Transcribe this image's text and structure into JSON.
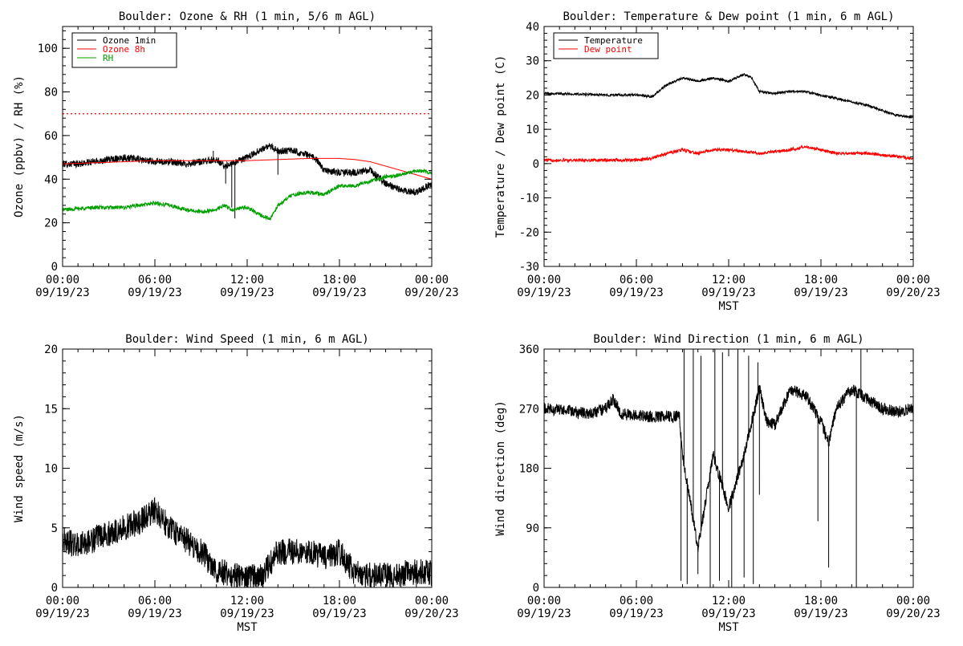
{
  "colors": {
    "background": "#ffffff",
    "axis": "#000000",
    "ozone_1min": "#000000",
    "ozone_8h": "#ff0000",
    "rh": "#00a000",
    "temperature": "#000000",
    "dew_point": "#ff0000",
    "wind": "#000000"
  },
  "chart_data": [
    {
      "id": "ozone-rh",
      "type": "line",
      "title": "Boulder: Ozone & RH (1 min, 5/6 m AGL)",
      "ylabel": "Ozone (ppbv) / RH (%)",
      "xlabel": "",
      "ylim": [
        0,
        110
      ],
      "yticks": [
        0,
        20,
        40,
        60,
        80,
        100
      ],
      "xlim_hours": [
        0,
        24
      ],
      "xticks": [
        {
          "h": 0,
          "time": "00:00",
          "date": "09/19/23"
        },
        {
          "h": 6,
          "time": "06:00",
          "date": "09/19/23"
        },
        {
          "h": 12,
          "time": "12:00",
          "date": "09/19/23"
        },
        {
          "h": 18,
          "time": "18:00",
          "date": "09/19/23"
        },
        {
          "h": 24,
          "time": "00:00",
          "date": "09/20/23"
        }
      ],
      "legend": {
        "placement": "top-left"
      },
      "reference_line": {
        "y": 70,
        "color": "#ff0000",
        "style": "dotted"
      },
      "series": [
        {
          "name": "Ozone 1min",
          "color": "#000000",
          "noise": 1.6,
          "spikes": [
            [
              9.8,
              53
            ],
            [
              10.6,
              38
            ],
            [
              11.0,
              27
            ],
            [
              11.2,
              22
            ],
            [
              14.0,
              42
            ]
          ],
          "x": [
            0,
            1,
            2,
            3,
            4,
            5,
            6,
            7,
            8,
            9,
            10,
            10.5,
            11,
            12,
            13,
            13.5,
            14,
            15,
            16,
            16.5,
            17,
            18,
            19,
            20,
            21,
            22,
            23,
            24
          ],
          "y": [
            47,
            47,
            48,
            49,
            50,
            49,
            48,
            48,
            47,
            48,
            49,
            46,
            47,
            50,
            54,
            55,
            53,
            53,
            51,
            49,
            44,
            43,
            43,
            44,
            38,
            35,
            34,
            38
          ]
        },
        {
          "name": "Ozone 8h",
          "color": "#ff0000",
          "noise": 0,
          "x": [
            0,
            2,
            4,
            6,
            8,
            10,
            12,
            14,
            16,
            18,
            19,
            20,
            21,
            22,
            23,
            24
          ],
          "y": [
            47,
            47.5,
            48,
            48.5,
            48.5,
            48.5,
            48.5,
            49,
            49.5,
            49.5,
            49,
            48,
            46,
            44,
            42,
            40
          ]
        },
        {
          "name": "RH",
          "color": "#00a000",
          "noise": 0.9,
          "x": [
            0,
            2,
            4,
            5,
            6,
            7,
            8,
            9,
            10,
            10.5,
            11,
            12,
            13,
            13.5,
            14,
            15,
            16,
            17,
            18,
            19,
            20,
            21,
            22,
            23,
            24
          ],
          "y": [
            26,
            27,
            27,
            28,
            29,
            28,
            26,
            25,
            26,
            28,
            26,
            27,
            23,
            22,
            28,
            33,
            34,
            33,
            37,
            37,
            39,
            41,
            42,
            44,
            43
          ]
        }
      ]
    },
    {
      "id": "temp-dew",
      "type": "line",
      "title": "Boulder: Temperature & Dew point (1 min, 6 m AGL)",
      "ylabel": "Temperature / Dew point (C)",
      "xlabel": "MST",
      "ylim": [
        -30,
        40
      ],
      "yticks": [
        -30,
        -20,
        -10,
        0,
        10,
        20,
        30,
        40
      ],
      "xlim_hours": [
        0,
        24
      ],
      "xticks": [
        {
          "h": 0,
          "time": "00:00",
          "date": "09/19/23"
        },
        {
          "h": 6,
          "time": "06:00",
          "date": "09/19/23"
        },
        {
          "h": 12,
          "time": "12:00",
          "date": "09/19/23"
        },
        {
          "h": 18,
          "time": "18:00",
          "date": "09/19/23"
        },
        {
          "h": 24,
          "time": "00:00",
          "date": "09/20/23"
        }
      ],
      "legend": {
        "placement": "top-left"
      },
      "series": [
        {
          "name": "Temperature",
          "color": "#000000",
          "noise": 0.35,
          "x": [
            0,
            2,
            4,
            6,
            7,
            8,
            9,
            10,
            11,
            12,
            13,
            13.5,
            14,
            15,
            16,
            17,
            18,
            19,
            20,
            21,
            22,
            23,
            24
          ],
          "y": [
            20.5,
            20.3,
            20,
            20,
            19.5,
            23,
            25,
            24,
            25,
            24,
            26,
            25,
            21,
            20.5,
            21,
            21,
            20,
            19,
            18,
            17,
            15.5,
            14,
            13.5
          ]
        },
        {
          "name": "Dew point",
          "color": "#ff0000",
          "noise": 0.45,
          "x": [
            0,
            2,
            4,
            6,
            7,
            8,
            9,
            10,
            11,
            12,
            13,
            14,
            15,
            16,
            17,
            18,
            19,
            20,
            21,
            22,
            23,
            24
          ],
          "y": [
            1,
            1,
            1,
            1,
            1.5,
            3,
            4,
            3,
            4,
            4,
            3.5,
            3,
            3.5,
            4,
            5,
            4,
            3,
            3,
            3,
            2.5,
            2,
            1.5
          ]
        }
      ]
    },
    {
      "id": "wind-speed",
      "type": "line",
      "title": "Boulder: Wind Speed (1 min, 6 m AGL)",
      "ylabel": "Wind speed (m/s)",
      "xlabel": "MST",
      "ylim": [
        0,
        20
      ],
      "yticks": [
        0,
        5,
        10,
        15,
        20
      ],
      "xlim_hours": [
        0,
        24
      ],
      "xticks": [
        {
          "h": 0,
          "time": "00:00",
          "date": "09/19/23"
        },
        {
          "h": 6,
          "time": "06:00",
          "date": "09/19/23"
        },
        {
          "h": 12,
          "time": "12:00",
          "date": "09/19/23"
        },
        {
          "h": 18,
          "time": "18:00",
          "date": "09/19/23"
        },
        {
          "h": 24,
          "time": "00:00",
          "date": "09/20/23"
        }
      ],
      "series": [
        {
          "name": "",
          "color": "#000000",
          "noise": 1.1,
          "floor": 0,
          "x": [
            0,
            1,
            2,
            3,
            4,
            5,
            6,
            7,
            8,
            9,
            10,
            11,
            12,
            13,
            14,
            15,
            16,
            17,
            18,
            19,
            20,
            21,
            22,
            23,
            24
          ],
          "y": [
            4,
            3.5,
            4,
            4.5,
            5,
            5.5,
            6.5,
            5,
            4,
            3,
            1.5,
            1,
            0.8,
            1,
            3,
            3,
            3,
            2.5,
            3,
            1.2,
            1,
            1,
            1.2,
            1.3,
            1.2
          ]
        }
      ]
    },
    {
      "id": "wind-direction",
      "type": "line",
      "title": "Boulder: Wind Direction (1 min, 6 m AGL)",
      "ylabel": "Wind direction (deg)",
      "xlabel": "MST",
      "ylim": [
        0,
        360
      ],
      "yticks": [
        0,
        90,
        180,
        270,
        360
      ],
      "xlim_hours": [
        0,
        24
      ],
      "xticks": [
        {
          "h": 0,
          "time": "00:00",
          "date": "09/19/23"
        },
        {
          "h": 6,
          "time": "06:00",
          "date": "09/19/23"
        },
        {
          "h": 12,
          "time": "12:00",
          "date": "09/19/23"
        },
        {
          "h": 18,
          "time": "18:00",
          "date": "09/19/23"
        },
        {
          "h": 24,
          "time": "00:00",
          "date": "09/20/23"
        }
      ],
      "series": [
        {
          "name": "",
          "color": "#000000",
          "noise": 9,
          "floor": 0,
          "ceil": 360,
          "spikes": [
            [
              8.9,
              10
            ],
            [
              9.1,
              360
            ],
            [
              9.3,
              5
            ],
            [
              9.7,
              360
            ],
            [
              10.0,
              20
            ],
            [
              10.2,
              350
            ],
            [
              10.8,
              0
            ],
            [
              11.1,
              360
            ],
            [
              11.4,
              10
            ],
            [
              11.6,
              355
            ],
            [
              12.2,
              0
            ],
            [
              12.6,
              360
            ],
            [
              13.0,
              15
            ],
            [
              13.3,
              350
            ],
            [
              13.6,
              5
            ],
            [
              13.9,
              340
            ],
            [
              14.0,
              140
            ],
            [
              17.8,
              100
            ],
            [
              18.5,
              30
            ],
            [
              20.3,
              0
            ],
            [
              20.6,
              360
            ]
          ],
          "x": [
            0,
            1,
            2,
            3,
            4,
            4.5,
            5,
            6,
            7,
            8,
            8.8,
            9,
            10,
            11,
            12,
            13,
            14,
            14.5,
            15,
            16,
            17,
            18,
            18.5,
            19,
            20,
            21,
            22,
            23,
            24
          ],
          "y": [
            270,
            268,
            265,
            262,
            270,
            285,
            262,
            260,
            258,
            258,
            258,
            200,
            60,
            200,
            120,
            200,
            300,
            250,
            245,
            300,
            290,
            250,
            220,
            270,
            300,
            285,
            270,
            265,
            270
          ]
        }
      ]
    }
  ]
}
